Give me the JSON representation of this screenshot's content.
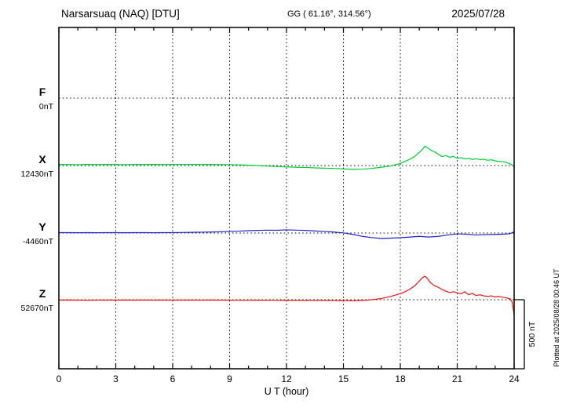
{
  "header": {
    "station_title": "Narsarsuaq (NAQ)  [DTU]",
    "coordinates": "GG ( 61.16°, 314.56°)",
    "date": "2025/07/28"
  },
  "footer": {
    "xlabel": "U T (hour)",
    "plotted_note": "Plotted at 2025/08/28 00:46 UT"
  },
  "scale_bar": {
    "label": "500 nT",
    "nT": 500
  },
  "chart_data": {
    "type": "line",
    "title": "Narsarsuaq (NAQ)  [DTU]",
    "xlabel": "U T (hour)",
    "unit": "nT",
    "xlim": [
      0,
      24
    ],
    "x_ticks": [
      0,
      3,
      6,
      9,
      12,
      15,
      18,
      21,
      24
    ],
    "x_minor_tick_step_hours": 1,
    "grid": "dotted-vertical-at-major-ticks",
    "scale_bar_nT": 500,
    "series": [
      {
        "name": "F",
        "color": "#ffaa00",
        "baseline_label": "0nT",
        "baseline_value_nT": 0,
        "points_offset_nT": []
      },
      {
        "name": "X",
        "color": "#00cc33",
        "baseline_label": "12430nT",
        "baseline_value_nT": 12430,
        "points_offset_nT": [
          [
            0,
            8
          ],
          [
            0.5,
            7
          ],
          [
            1,
            6
          ],
          [
            1.5,
            8
          ],
          [
            2,
            7
          ],
          [
            2.5,
            8
          ],
          [
            3,
            7
          ],
          [
            3.5,
            6
          ],
          [
            4,
            8
          ],
          [
            4.5,
            7
          ],
          [
            5,
            8
          ],
          [
            5.5,
            7
          ],
          [
            6,
            7
          ],
          [
            6.5,
            8
          ],
          [
            7,
            8
          ],
          [
            7.5,
            7
          ],
          [
            8,
            8
          ],
          [
            8.5,
            7
          ],
          [
            9,
            6
          ],
          [
            9.5,
            5
          ],
          [
            10,
            3
          ],
          [
            10.5,
            0
          ],
          [
            11,
            -4
          ],
          [
            11.5,
            -7
          ],
          [
            12,
            -10
          ],
          [
            12.5,
            -12
          ],
          [
            13,
            -14
          ],
          [
            13.5,
            -17
          ],
          [
            14,
            -19
          ],
          [
            14.5,
            -21
          ],
          [
            15,
            -24
          ],
          [
            15.5,
            -27
          ],
          [
            16,
            -26
          ],
          [
            16.5,
            -21
          ],
          [
            17,
            -12
          ],
          [
            17.5,
            -2
          ],
          [
            18,
            15
          ],
          [
            18.25,
            30
          ],
          [
            18.5,
            45
          ],
          [
            18.75,
            65
          ],
          [
            19,
            95
          ],
          [
            19.15,
            115
          ],
          [
            19.3,
            140
          ],
          [
            19.45,
            128
          ],
          [
            19.6,
            112
          ],
          [
            19.8,
            100
          ],
          [
            20,
            82
          ],
          [
            20.2,
            65
          ],
          [
            20.4,
            72
          ],
          [
            20.6,
            60
          ],
          [
            20.8,
            66
          ],
          [
            21,
            52
          ],
          [
            21.2,
            58
          ],
          [
            21.4,
            48
          ],
          [
            21.6,
            52
          ],
          [
            21.8,
            44
          ],
          [
            22,
            50
          ],
          [
            22.2,
            42
          ],
          [
            22.4,
            46
          ],
          [
            22.6,
            38
          ],
          [
            22.8,
            42
          ],
          [
            23,
            34
          ],
          [
            23.2,
            30
          ],
          [
            23.4,
            28
          ],
          [
            23.6,
            22
          ],
          [
            23.8,
            12
          ],
          [
            23.95,
            0
          ],
          [
            24,
            -18
          ]
        ]
      },
      {
        "name": "Y",
        "color": "#2222cc",
        "baseline_label": "-4460nT",
        "baseline_value_nT": -4460,
        "points_offset_nT": [
          [
            0,
            3
          ],
          [
            0.5,
            3
          ],
          [
            1,
            2
          ],
          [
            1.5,
            3
          ],
          [
            2,
            2
          ],
          [
            2.5,
            3
          ],
          [
            3,
            3
          ],
          [
            3.5,
            2
          ],
          [
            4,
            3
          ],
          [
            4.5,
            3
          ],
          [
            5,
            2
          ],
          [
            5.5,
            3
          ],
          [
            6,
            3
          ],
          [
            6.5,
            4
          ],
          [
            7,
            5
          ],
          [
            7.5,
            6
          ],
          [
            8,
            7
          ],
          [
            8.5,
            9
          ],
          [
            9,
            11
          ],
          [
            9.5,
            14
          ],
          [
            10,
            17
          ],
          [
            10.5,
            19
          ],
          [
            11,
            21
          ],
          [
            11.5,
            20
          ],
          [
            12,
            23
          ],
          [
            12.5,
            21
          ],
          [
            13,
            19
          ],
          [
            13.5,
            15
          ],
          [
            14,
            11
          ],
          [
            14.5,
            7
          ],
          [
            15,
            1
          ],
          [
            15.5,
            -10
          ],
          [
            16,
            -24
          ],
          [
            16.5,
            -33
          ],
          [
            17,
            -39
          ],
          [
            17.5,
            -37
          ],
          [
            18,
            -34
          ],
          [
            18.5,
            -29
          ],
          [
            19,
            -24
          ],
          [
            19.5,
            -29
          ],
          [
            20,
            -24
          ],
          [
            20.5,
            -14
          ],
          [
            21,
            -6
          ],
          [
            21.5,
            -9
          ],
          [
            22,
            -14
          ],
          [
            22.5,
            -11
          ],
          [
            23,
            -10
          ],
          [
            23.5,
            -8
          ],
          [
            23.8,
            -4
          ],
          [
            24,
            9
          ]
        ]
      },
      {
        "name": "Z",
        "color": "#ee1111",
        "baseline_label": "52670nT",
        "baseline_value_nT": 52670,
        "points_offset_nT": [
          [
            0,
            -3
          ],
          [
            0.5,
            -2
          ],
          [
            1,
            -3
          ],
          [
            1.5,
            -4
          ],
          [
            2,
            -3
          ],
          [
            2.5,
            -2
          ],
          [
            3,
            -3
          ],
          [
            3.5,
            -2
          ],
          [
            4,
            -3
          ],
          [
            4.5,
            -2
          ],
          [
            5,
            -3
          ],
          [
            5.5,
            -2
          ],
          [
            6,
            -3
          ],
          [
            6.5,
            -3
          ],
          [
            7,
            -2
          ],
          [
            7.5,
            -3
          ],
          [
            8,
            -2
          ],
          [
            8.5,
            -3
          ],
          [
            9,
            -3
          ],
          [
            9.5,
            -4
          ],
          [
            10,
            -4
          ],
          [
            10.5,
            -3
          ],
          [
            11,
            -4
          ],
          [
            11.5,
            -4
          ],
          [
            12,
            -5
          ],
          [
            12.5,
            -4
          ],
          [
            13,
            -5
          ],
          [
            13.5,
            -4
          ],
          [
            14,
            -5
          ],
          [
            14.5,
            -6
          ],
          [
            15,
            -5
          ],
          [
            15.5,
            -8
          ],
          [
            16,
            -5
          ],
          [
            16.5,
            0
          ],
          [
            17,
            9
          ],
          [
            17.5,
            24
          ],
          [
            18,
            44
          ],
          [
            18.25,
            58
          ],
          [
            18.5,
            76
          ],
          [
            18.75,
            100
          ],
          [
            19,
            135
          ],
          [
            19.15,
            158
          ],
          [
            19.3,
            170
          ],
          [
            19.45,
            150
          ],
          [
            19.6,
            122
          ],
          [
            19.8,
            102
          ],
          [
            20,
            90
          ],
          [
            20.2,
            74
          ],
          [
            20.4,
            62
          ],
          [
            20.6,
            52
          ],
          [
            20.8,
            58
          ],
          [
            21,
            50
          ],
          [
            21.2,
            42
          ],
          [
            21.4,
            58
          ],
          [
            21.6,
            36
          ],
          [
            21.8,
            46
          ],
          [
            22,
            30
          ],
          [
            22.2,
            36
          ],
          [
            22.4,
            28
          ],
          [
            22.6,
            24
          ],
          [
            22.8,
            28
          ],
          [
            23,
            20
          ],
          [
            23.2,
            24
          ],
          [
            23.4,
            18
          ],
          [
            23.6,
            14
          ],
          [
            23.8,
            6
          ],
          [
            23.9,
            -20
          ],
          [
            24,
            -108
          ]
        ]
      }
    ]
  }
}
